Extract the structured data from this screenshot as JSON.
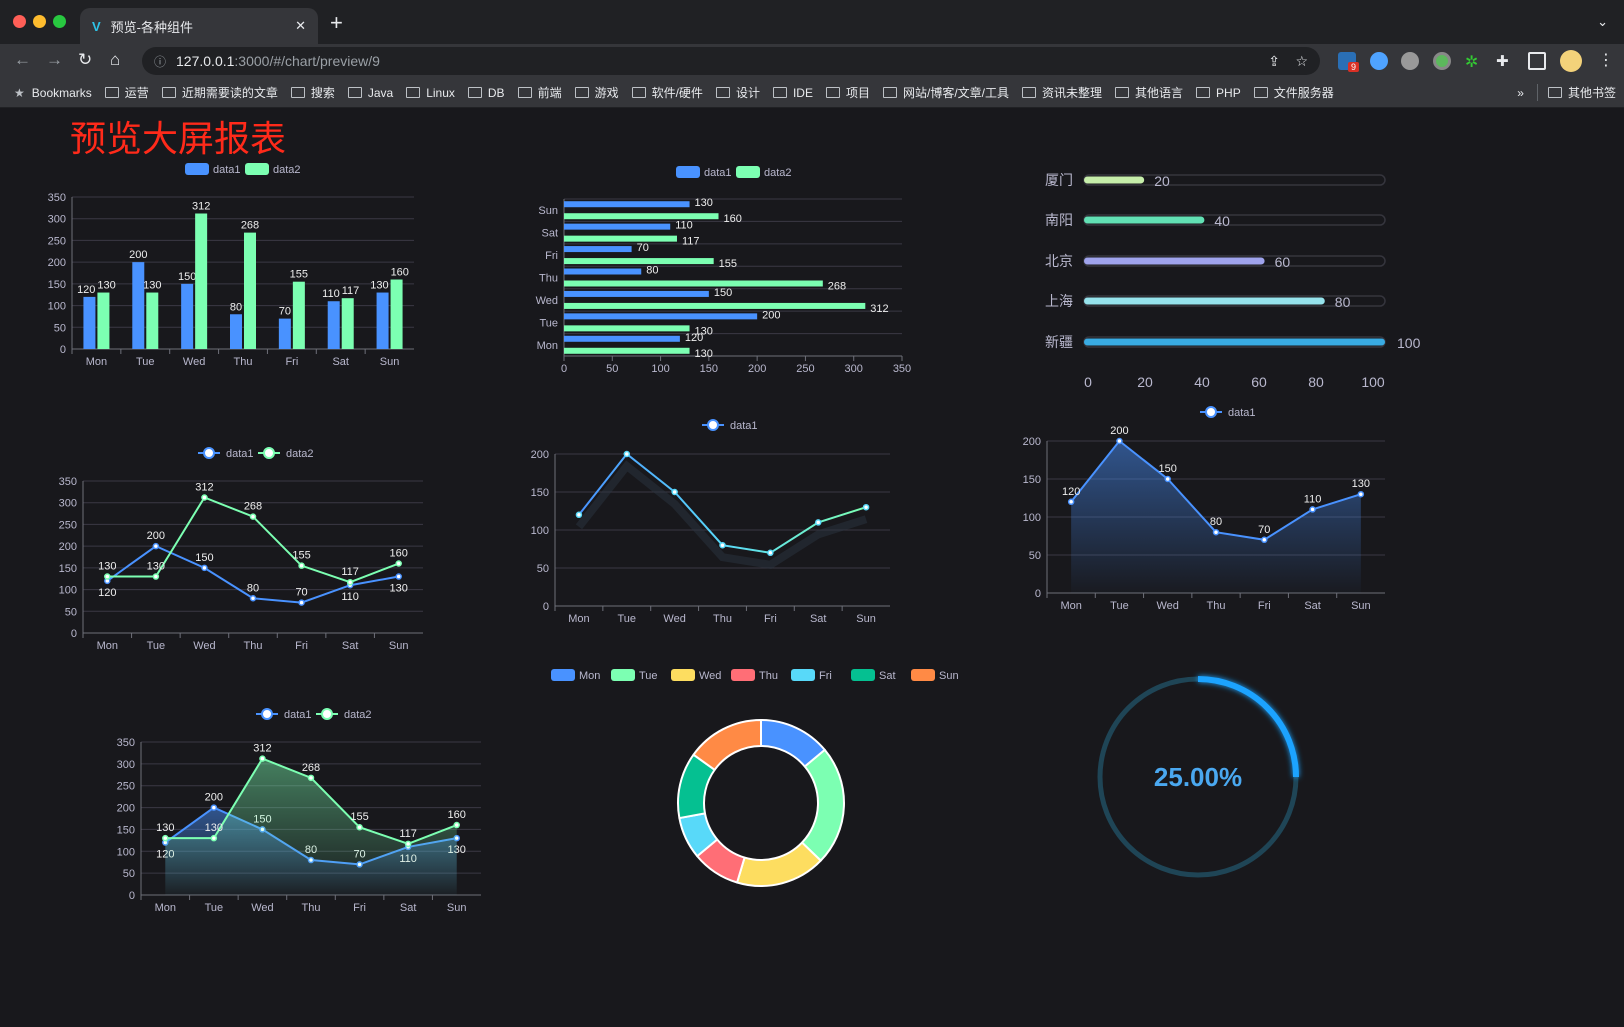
{
  "browser": {
    "tab_title": "预览-各种组件",
    "url_host": "127.0.0.1",
    "url_rest": ":3000/#/chart/preview/9",
    "extension_badge": "9",
    "bookmarks_label": "Bookmarks",
    "bookmarks": [
      "运营",
      "近期需要读的文章",
      "搜索",
      "Java",
      "Linux",
      "DB",
      "前端",
      "游戏",
      "软件/硬件",
      "设计",
      "IDE",
      "项目",
      "网站/博客/文章/工具",
      "资讯未整理",
      "其他语言",
      "PHP",
      "文件服务器"
    ],
    "overflow": "»",
    "other_bookmarks": "其他书签"
  },
  "page": {
    "title": "预览大屏报表"
  },
  "colors": {
    "data1": "#4992ff",
    "data2": "#7cffb2",
    "background": "#18181c",
    "title": "#ff2a1a"
  },
  "chart_data": [
    {
      "id": "c1",
      "type": "bar",
      "orientation": "vertical",
      "legend": [
        "data1",
        "data2"
      ],
      "categories": [
        "Mon",
        "Tue",
        "Wed",
        "Thu",
        "Fri",
        "Sat",
        "Sun"
      ],
      "series": [
        {
          "name": "data1",
          "values": [
            120,
            200,
            150,
            80,
            70,
            110,
            130
          ]
        },
        {
          "name": "data2",
          "values": [
            130,
            130,
            312,
            268,
            155,
            117,
            160
          ]
        }
      ],
      "ylim": [
        0,
        350
      ],
      "yticks": [
        0,
        50,
        100,
        150,
        200,
        250,
        300,
        350
      ],
      "grid": true
    },
    {
      "id": "c2",
      "type": "bar",
      "orientation": "horizontal",
      "legend": [
        "data1",
        "data2"
      ],
      "categories": [
        "Mon",
        "Tue",
        "Wed",
        "Thu",
        "Fri",
        "Sat",
        "Sun"
      ],
      "series": [
        {
          "name": "data1",
          "values": [
            120,
            200,
            150,
            80,
            70,
            110,
            130
          ]
        },
        {
          "name": "data2",
          "values": [
            130,
            130,
            312,
            268,
            155,
            117,
            160
          ]
        }
      ],
      "xlim": [
        0,
        350
      ],
      "xticks": [
        0,
        50,
        100,
        150,
        200,
        250,
        300,
        350
      ],
      "grid": true
    },
    {
      "id": "c3",
      "type": "bar",
      "orientation": "horizontal-progress",
      "categories": [
        "厦门",
        "南阳",
        "北京",
        "上海",
        "新疆"
      ],
      "values": [
        20,
        40,
        60,
        80,
        100
      ],
      "colors": [
        "#c6eeaa",
        "#62e0b4",
        "#9fa3ec",
        "#96e3ec",
        "#39abe3"
      ],
      "xlim": [
        0,
        100
      ],
      "xticks": [
        0,
        20,
        40,
        60,
        80,
        100
      ]
    },
    {
      "id": "c4",
      "type": "line",
      "legend": [
        "data1",
        "data2"
      ],
      "categories": [
        "Mon",
        "Tue",
        "Wed",
        "Thu",
        "Fri",
        "Sat",
        "Sun"
      ],
      "series": [
        {
          "name": "data1",
          "values": [
            120,
            200,
            150,
            80,
            70,
            110,
            130
          ]
        },
        {
          "name": "data2",
          "values": [
            130,
            130,
            312,
            268,
            155,
            117,
            160
          ]
        }
      ],
      "ylim": [
        0,
        350
      ],
      "yticks": [
        0,
        50,
        100,
        150,
        200,
        250,
        300,
        350
      ],
      "area": false
    },
    {
      "id": "c5",
      "type": "line",
      "legend": [
        "data1"
      ],
      "categories": [
        "Mon",
        "Tue",
        "Wed",
        "Thu",
        "Fri",
        "Sat",
        "Sun"
      ],
      "series": [
        {
          "name": "data1",
          "values": [
            120,
            200,
            150,
            80,
            70,
            110,
            130
          ]
        }
      ],
      "ylim": [
        0,
        200
      ],
      "yticks": [
        0,
        50,
        100,
        150,
        200
      ],
      "area": false,
      "gradient_line": true
    },
    {
      "id": "c6",
      "type": "area",
      "legend": [
        "data1"
      ],
      "categories": [
        "Mon",
        "Tue",
        "Wed",
        "Thu",
        "Fri",
        "Sat",
        "Sun"
      ],
      "series": [
        {
          "name": "data1",
          "values": [
            120,
            200,
            150,
            80,
            70,
            110,
            130
          ]
        }
      ],
      "ylim": [
        0,
        200
      ],
      "yticks": [
        0,
        50,
        100,
        150,
        200
      ],
      "area": true
    },
    {
      "id": "c7",
      "type": "area",
      "legend": [
        "data1",
        "data2"
      ],
      "categories": [
        "Mon",
        "Tue",
        "Wed",
        "Thu",
        "Fri",
        "Sat",
        "Sun"
      ],
      "series": [
        {
          "name": "data1",
          "values": [
            120,
            200,
            150,
            80,
            70,
            110,
            130
          ]
        },
        {
          "name": "data2",
          "values": [
            130,
            130,
            312,
            268,
            155,
            117,
            160
          ]
        }
      ],
      "ylim": [
        0,
        350
      ],
      "yticks": [
        0,
        50,
        100,
        150,
        200,
        250,
        300,
        350
      ],
      "area": true
    },
    {
      "id": "c8",
      "type": "pie",
      "donut": true,
      "legend": [
        "Mon",
        "Tue",
        "Wed",
        "Thu",
        "Fri",
        "Sat",
        "Sun"
      ],
      "categories": [
        "Mon",
        "Tue",
        "Wed",
        "Thu",
        "Fri",
        "Sat",
        "Sun"
      ],
      "values": [
        120,
        200,
        150,
        80,
        70,
        110,
        130
      ],
      "colors": [
        "#4992ff",
        "#7cffb2",
        "#fddd60",
        "#ff6e76",
        "#58d9f9",
        "#05c091",
        "#ff8a45"
      ]
    },
    {
      "id": "c9",
      "type": "gauge",
      "value": 25,
      "label": "25.00%",
      "color": "#1aa3ff"
    }
  ]
}
